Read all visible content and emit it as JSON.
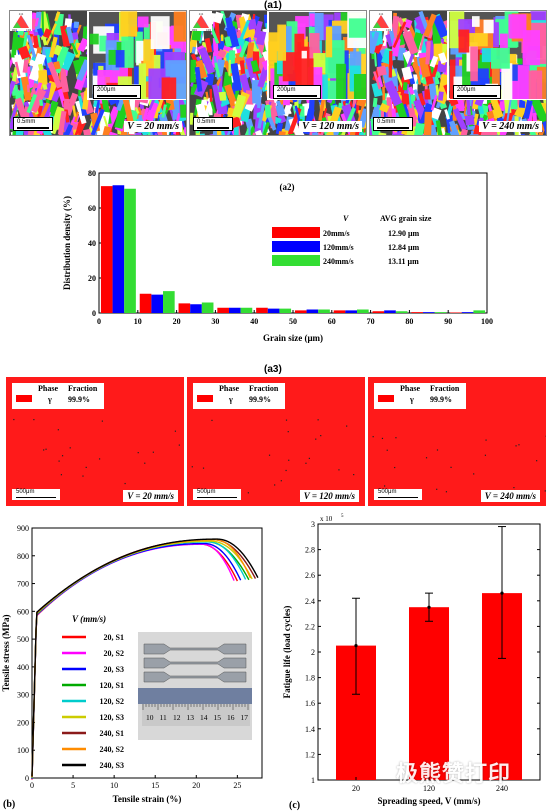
{
  "labels": {
    "a1": "(a1)",
    "a2": "(a2)",
    "a3": "(a3)",
    "b": "(b)",
    "c": "(c)"
  },
  "ebsd": {
    "scale_main": "0.5mm",
    "scale_inset": "200μm",
    "triangle": [
      "111",
      "001",
      "101"
    ],
    "captions": [
      "V = 20 mm/s",
      "V = 120 mm/s",
      "V = 240 mm/s"
    ]
  },
  "phase": {
    "header_phase": "Phase",
    "header_fraction": "Fraction",
    "symbol": "γ",
    "fraction": "99.9%",
    "scale": "500μm",
    "captions": [
      "V = 20 mm/s",
      "V = 120 mm/s",
      "V = 240 mm/s"
    ],
    "color": "#ff1a1a"
  },
  "watermark": "极熊赞打印",
  "chart_data": [
    {
      "id": "a2",
      "type": "bar",
      "title": "(a2)",
      "xlabel": "Grain size (μm)",
      "ylabel": "Distribution density (%)",
      "xlim": [
        0,
        100
      ],
      "ylim": [
        0,
        80
      ],
      "xticks": [
        0,
        10,
        20,
        30,
        40,
        50,
        60,
        70,
        80,
        90,
        100
      ],
      "yticks": [
        0,
        20,
        40,
        60,
        80
      ],
      "categories": [
        5,
        15,
        25,
        35,
        45,
        55,
        65,
        75,
        85,
        95
      ],
      "series": [
        {
          "name": "20mm/s",
          "color": "#ff0000",
          "values": [
            72.5,
            11,
            5.5,
            3,
            3,
            1.5,
            1.5,
            1,
            0.5,
            0.3
          ]
        },
        {
          "name": "120mm/s",
          "color": "#0000ff",
          "values": [
            73,
            10.5,
            5,
            3,
            2.5,
            2,
            1.5,
            1.5,
            0.5,
            0.5
          ]
        },
        {
          "name": "240mm/s",
          "color": "#33dd33",
          "values": [
            71,
            12.5,
            6,
            3,
            2.5,
            2,
            2,
            1,
            0.5,
            1.5
          ]
        }
      ],
      "legend_header": [
        "V",
        "AVG grain size"
      ],
      "legend_values": [
        "12.90 μm",
        "12.84 μm",
        "13.11 μm"
      ],
      "legend_position": "right"
    },
    {
      "id": "b",
      "type": "line",
      "xlabel": "Tensile strain (%)",
      "ylabel": "Tensile stress (MPa)",
      "xlim": [
        0,
        28
      ],
      "ylim": [
        0,
        900
      ],
      "xticks": [
        0,
        5,
        10,
        15,
        20,
        25
      ],
      "yticks": [
        0,
        100,
        200,
        300,
        400,
        500,
        600,
        700,
        800,
        900
      ],
      "legend_title": "V (mm/s)",
      "series": [
        {
          "name": "20, S1",
          "color": "#ff0000",
          "peak": 848,
          "end": 25.0
        },
        {
          "name": "20, S2",
          "color": "#ff00ff",
          "peak": 846,
          "end": 24.6
        },
        {
          "name": "20, S3",
          "color": "#0000ff",
          "peak": 847,
          "end": 25.4
        },
        {
          "name": "120, S1",
          "color": "#00aa00",
          "peak": 852,
          "end": 26.4
        },
        {
          "name": "120, S2",
          "color": "#00cccc",
          "peak": 850,
          "end": 26.0
        },
        {
          "name": "120, S3",
          "color": "#cccc00",
          "peak": 851,
          "end": 26.8
        },
        {
          "name": "240, S1",
          "color": "#8b1a1a",
          "peak": 855,
          "end": 27.2
        },
        {
          "name": "240, S2",
          "color": "#ff8c00",
          "peak": 853,
          "end": 26.6
        },
        {
          "name": "240, S3",
          "color": "#000000",
          "peak": 854,
          "end": 27.5
        }
      ],
      "legend_position": "left"
    },
    {
      "id": "c",
      "type": "bar",
      "xlabel": "Spreading speed, V (mm/s)",
      "ylabel": "Fatigue life (load cycles)",
      "multiplier": "x 10^5",
      "ylim": [
        1,
        3
      ],
      "yticks": [
        1,
        1.2,
        1.4,
        1.6,
        1.8,
        2,
        2.2,
        2.4,
        2.6,
        2.8,
        3
      ],
      "categories": [
        "20",
        "120",
        "240"
      ],
      "values": [
        2.05,
        2.35,
        2.46
      ],
      "errors": [
        [
          1.67,
          2.42
        ],
        [
          2.24,
          2.46
        ],
        [
          1.95,
          2.98
        ]
      ],
      "color": "#ff0000"
    }
  ]
}
